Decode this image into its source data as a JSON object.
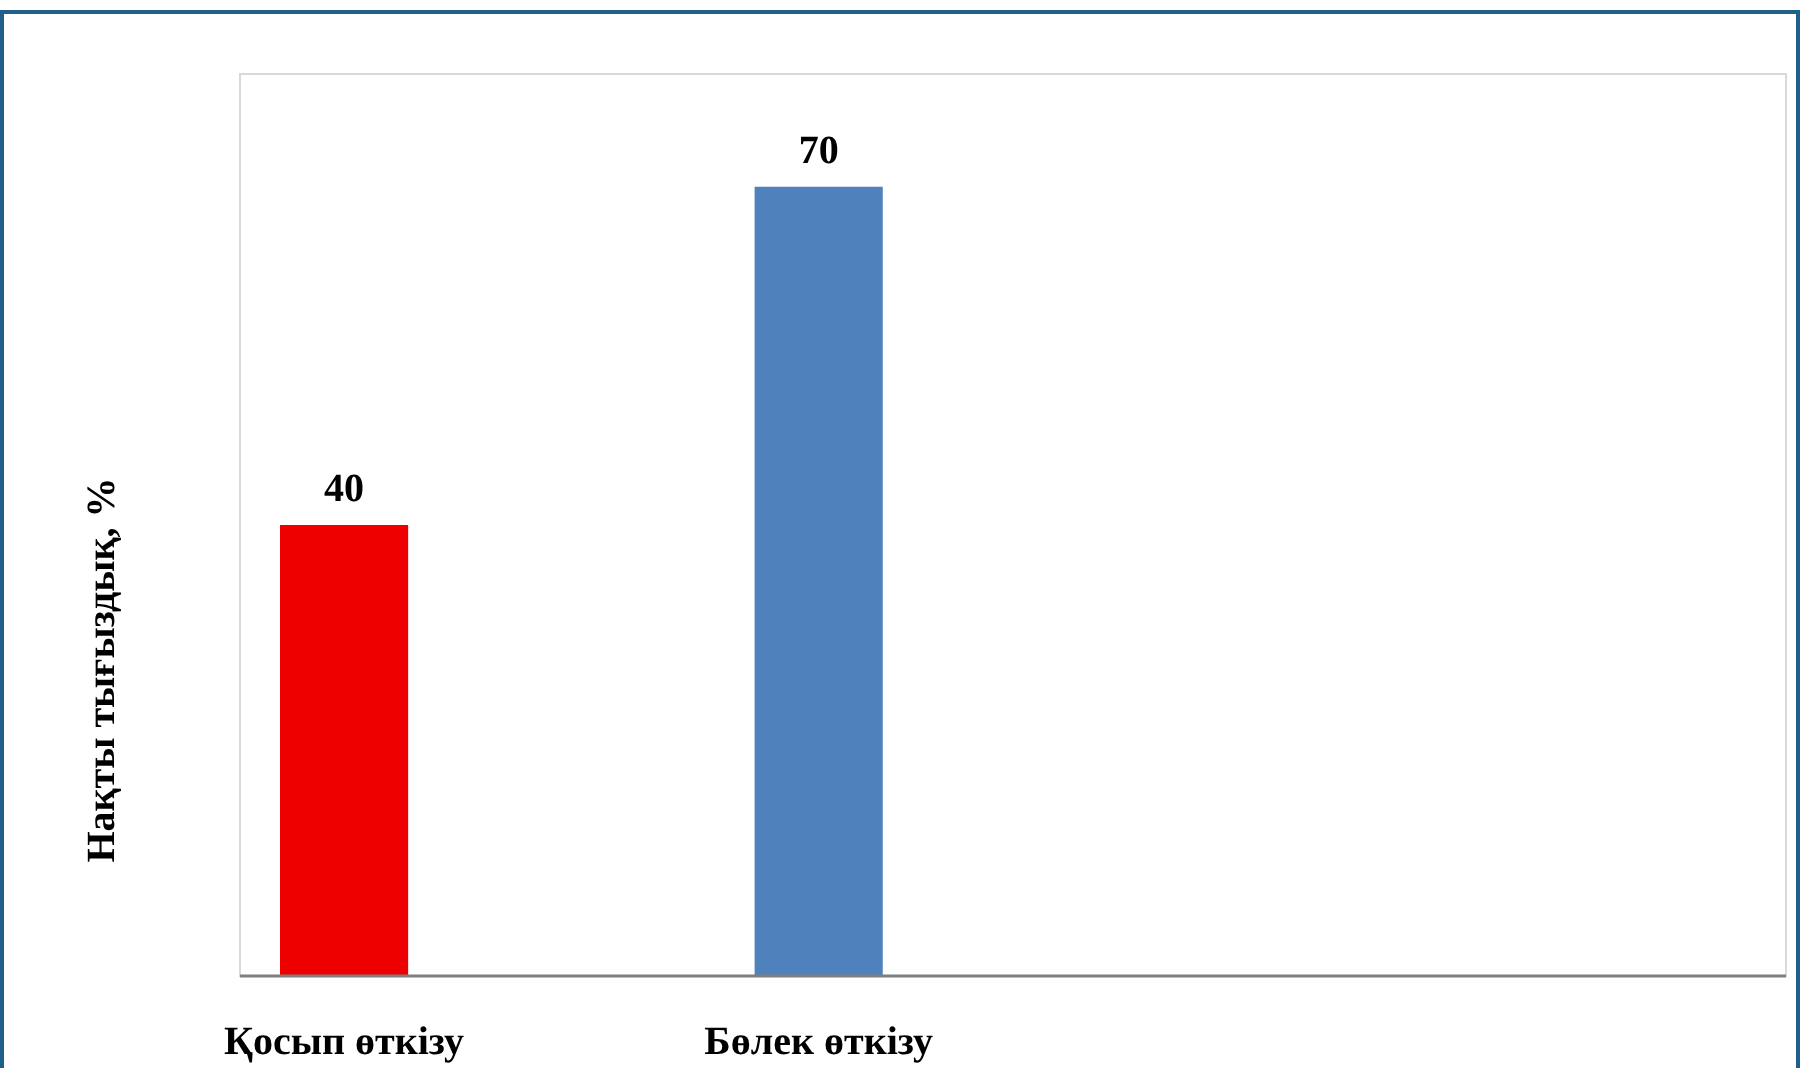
{
  "chart_data": {
    "type": "bar",
    "ylabel": "Нақты тығыздық, %",
    "categories": [
      "Қосып өткізу",
      "Бөлек өткізу",
      null,
      null
    ],
    "values": [
      40,
      70,
      null,
      null
    ],
    "colors": [
      "#ee0000",
      "#4f81bd",
      null,
      null
    ],
    "data_labels": true
  }
}
